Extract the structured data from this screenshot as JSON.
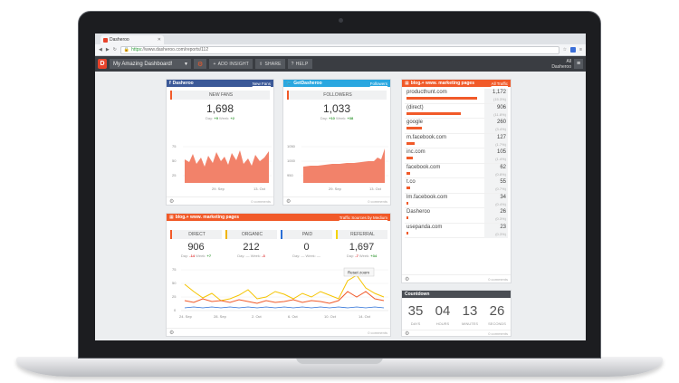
{
  "browser": {
    "tab_title": "Dasheroo",
    "url_https": "https",
    "url_rest": "://www.dasheroo.com/reports/112"
  },
  "toolbar": {
    "logo": "D",
    "dashboard_name": "My Amazing Dashboard!",
    "add_insight": "ADD INSIGHT",
    "share": "SHARE",
    "help": "HELP",
    "user_line1": "All",
    "user_line2": "Dasheroo"
  },
  "fb_panel": {
    "title": "Dasheroo",
    "link": "New Fans",
    "metric_label": "NEW FANS",
    "value": "1,698",
    "delta": {
      "day_label": "Day:",
      "day": "+9",
      "week_label": "Week:",
      "week": "+2"
    },
    "footer": "0 comments",
    "y_ticks": [
      "75",
      "50",
      "25"
    ],
    "x_ticks": [
      "29. Sep",
      "13. Oct"
    ]
  },
  "tw_panel": {
    "title": "GetDasheroo",
    "link": "Followers",
    "metric_label": "FOLLOWERS",
    "value": "1,033",
    "delta": {
      "day_label": "Day:",
      "day": "+10",
      "week_label": "Week:",
      "week": "+38"
    },
    "footer": "0 comments",
    "y_ticks": [
      "1050",
      "1000",
      "950"
    ],
    "x_ticks": [
      "29. Sep",
      "13. Oct"
    ]
  },
  "traffic_panel": {
    "title": "blog.+ www. marketing pages",
    "link": "Traffic Sources by Medium",
    "footer": "0 comments",
    "tiles": [
      {
        "label": "DIRECT",
        "value": "906",
        "day": "-14",
        "week": "+7",
        "color": "#f15a29"
      },
      {
        "label": "ORGANIC",
        "value": "212",
        "day": "—",
        "week": "-3",
        "color": "#f0b400"
      },
      {
        "label": "PAID",
        "value": "0",
        "day": "—",
        "week": "—",
        "color": "#2a6fd6"
      },
      {
        "label": "REFERRAL",
        "value": "1,697",
        "day": "-7",
        "week": "+34",
        "color": "#f5d400"
      }
    ],
    "day_label": "Day:",
    "week_label": "Week:",
    "reset_zoom": "Reset zoom",
    "y_ticks": [
      "75",
      "50",
      "25",
      "0"
    ],
    "x_ticks": [
      "24. Sep",
      "28. Sep",
      "2. Oct",
      "6. Oct",
      "10. Oct",
      "14. Oct"
    ]
  },
  "referrals_panel": {
    "title": "blog.+ www. marketing pages",
    "link": "All Traffic",
    "footer": "0 comments",
    "rows": [
      {
        "name": "producthunt.com",
        "value": "1,172",
        "pct": "(15.3%)",
        "frac": 1.0
      },
      {
        "name": "(direct)",
        "value": "906",
        "pct": "(11.8%)",
        "frac": 0.77
      },
      {
        "name": "google",
        "value": "260",
        "pct": "(3.4%)",
        "frac": 0.22
      },
      {
        "name": "m.facebook.com",
        "value": "127",
        "pct": "(1.7%)",
        "frac": 0.11
      },
      {
        "name": "inc.com",
        "value": "105",
        "pct": "(1.4%)",
        "frac": 0.09
      },
      {
        "name": "facebook.com",
        "value": "62",
        "pct": "(0.8%)",
        "frac": 0.055
      },
      {
        "name": "t.co",
        "value": "55",
        "pct": "(0.7%)",
        "frac": 0.047
      },
      {
        "name": "lm.facebook.com",
        "value": "34",
        "pct": "(0.4%)",
        "frac": 0.03
      },
      {
        "name": "Dasheroo",
        "value": "26",
        "pct": "(0.3%)",
        "frac": 0.022
      },
      {
        "name": "usepanda.com",
        "value": "23",
        "pct": "(0.3%)",
        "frac": 0.02
      }
    ]
  },
  "countdown_panel": {
    "title": "Countdown",
    "footer": "0 comments",
    "units": [
      {
        "value": "35",
        "label": "DAYS"
      },
      {
        "value": "04",
        "label": "HOURS"
      },
      {
        "value": "13",
        "label": "MINUTES"
      },
      {
        "value": "26",
        "label": "SECONDS"
      }
    ]
  },
  "colors": {
    "accent": "#f15a29",
    "facebook": "#3b5998",
    "twitter": "#2aa7e0",
    "toolbar": "#3a3d42"
  }
}
